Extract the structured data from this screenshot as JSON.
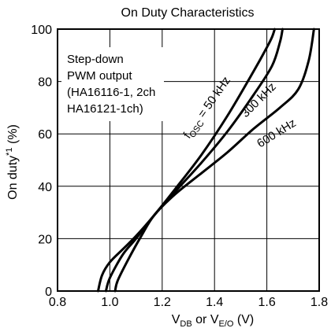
{
  "chart_data": {
    "type": "line",
    "title": "On Duty Characteristics",
    "xlabel": {
      "base1": "V",
      "sub1": "DB",
      "mid": " or V",
      "sub2": "E/O",
      "tail": " (V)"
    },
    "ylabel": {
      "base": "On duty",
      "sup": "*1",
      "tail": " (%)"
    },
    "xlim": [
      0.8,
      1.8
    ],
    "ylim": [
      0,
      100
    ],
    "grid": true,
    "x_ticks": [
      {
        "value": 0.8,
        "label": "0.8"
      },
      {
        "value": 1.0,
        "label": "1.0"
      },
      {
        "value": 1.2,
        "label": "1.2"
      },
      {
        "value": 1.4,
        "label": "1.4"
      },
      {
        "value": 1.6,
        "label": "1.6"
      },
      {
        "value": 1.8,
        "label": "1.8"
      }
    ],
    "y_ticks": [
      {
        "value": 0,
        "label": "0"
      },
      {
        "value": 20,
        "label": "20"
      },
      {
        "value": 40,
        "label": "40"
      },
      {
        "value": 60,
        "label": "60"
      },
      {
        "value": 80,
        "label": "80"
      },
      {
        "value": 100,
        "label": "100"
      }
    ],
    "note_lines": [
      "Step-down",
      "PWM output",
      "(HA16116-1, 2ch",
      "HA16121-1ch)"
    ],
    "series": [
      {
        "label": {
          "f": "f",
          "sub": "OSC",
          "tail": " = 50 kHz"
        },
        "points": [
          {
            "x": 0.955,
            "y": 0
          },
          {
            "x": 0.97,
            "y": 6
          },
          {
            "x": 1.0,
            "y": 11
          },
          {
            "x": 1.05,
            "y": 16
          },
          {
            "x": 1.1,
            "y": 21
          },
          {
            "x": 1.17,
            "y": 29
          },
          {
            "x": 1.25,
            "y": 39
          },
          {
            "x": 1.35,
            "y": 52
          },
          {
            "x": 1.45,
            "y": 67
          },
          {
            "x": 1.55,
            "y": 84
          },
          {
            "x": 1.6,
            "y": 93
          },
          {
            "x": 1.62,
            "y": 97
          },
          {
            "x": 1.63,
            "y": 100
          }
        ]
      },
      {
        "label": {
          "f": "",
          "sub": "",
          "tail": "300 kHz"
        },
        "points": [
          {
            "x": 0.985,
            "y": 0
          },
          {
            "x": 1.0,
            "y": 5
          },
          {
            "x": 1.05,
            "y": 14
          },
          {
            "x": 1.1,
            "y": 20
          },
          {
            "x": 1.17,
            "y": 29
          },
          {
            "x": 1.25,
            "y": 38
          },
          {
            "x": 1.35,
            "y": 49
          },
          {
            "x": 1.45,
            "y": 61
          },
          {
            "x": 1.55,
            "y": 75
          },
          {
            "x": 1.62,
            "y": 86
          },
          {
            "x": 1.65,
            "y": 95
          },
          {
            "x": 1.66,
            "y": 100
          }
        ]
      },
      {
        "label": {
          "f": "",
          "sub": "",
          "tail": "600 kHz"
        },
        "points": [
          {
            "x": 1.02,
            "y": 0
          },
          {
            "x": 1.03,
            "y": 4
          },
          {
            "x": 1.07,
            "y": 12
          },
          {
            "x": 1.12,
            "y": 21
          },
          {
            "x": 1.17,
            "y": 29
          },
          {
            "x": 1.25,
            "y": 37
          },
          {
            "x": 1.35,
            "y": 45
          },
          {
            "x": 1.45,
            "y": 53
          },
          {
            "x": 1.55,
            "y": 62
          },
          {
            "x": 1.65,
            "y": 70
          },
          {
            "x": 1.72,
            "y": 77
          },
          {
            "x": 1.76,
            "y": 88
          },
          {
            "x": 1.78,
            "y": 100
          }
        ]
      }
    ]
  }
}
